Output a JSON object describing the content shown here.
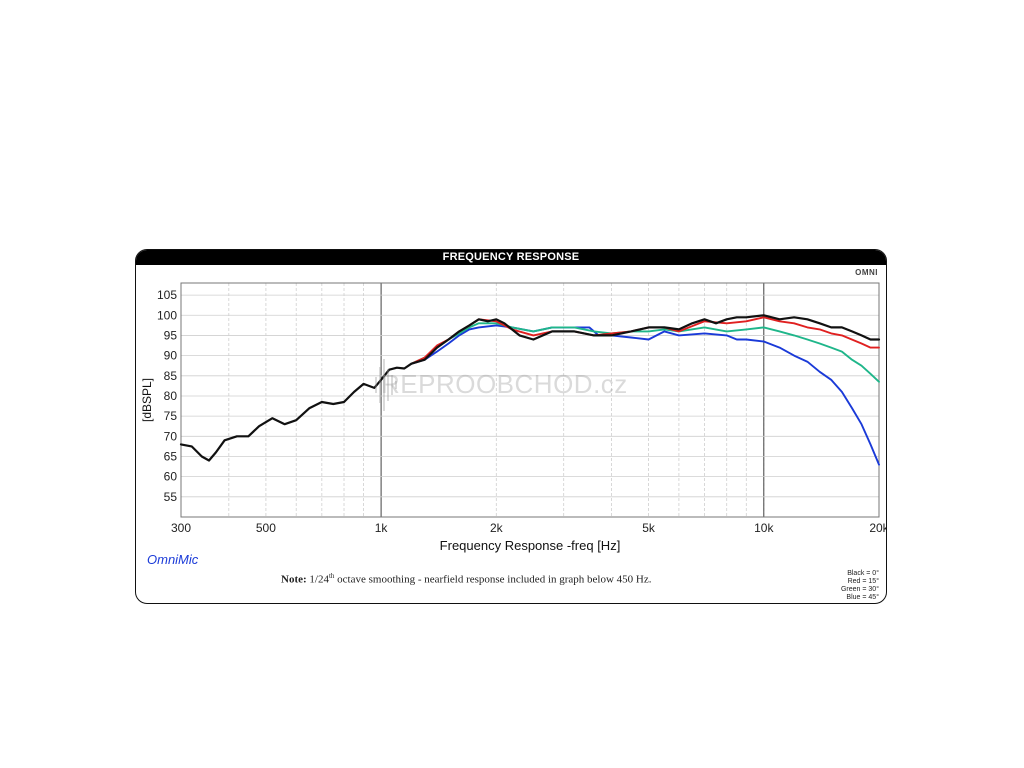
{
  "header": {
    "title": "FREQUENCY RESPONSE",
    "brand": "OMNI"
  },
  "watermark": {
    "text": "REPROOBCHOD.cz"
  },
  "footer": {
    "logo": "OmniMic",
    "note_bold": "Note:",
    "note_pre": " 1/24",
    "note_sup": "th",
    "note_post": " octave smoothing - nearfield response included in graph below 450 Hz."
  },
  "legend": [
    "Black = 0°",
    "Red = 15°",
    "Green = 30°",
    "Blue = 45°"
  ],
  "colors": {
    "black": "#111111",
    "red": "#e02020",
    "green": "#1fb68a",
    "blue": "#1a3ad8",
    "grid": "#cfcfcf",
    "frame": "#777777"
  },
  "chart_data": {
    "type": "line",
    "xlabel": "Frequency Response -freq [Hz]",
    "ylabel": "[dBSPL]",
    "xscale": "log",
    "xlim": [
      300,
      20000
    ],
    "ylim": [
      50,
      108
    ],
    "yticks": [
      55,
      60,
      65,
      70,
      75,
      80,
      85,
      90,
      95,
      100,
      105
    ],
    "xticks": [
      {
        "value": 300,
        "label": "300"
      },
      {
        "value": 500,
        "label": "500"
      },
      {
        "value": 1000,
        "label": "1k"
      },
      {
        "value": 2000,
        "label": "2k"
      },
      {
        "value": 5000,
        "label": "5k"
      },
      {
        "value": 10000,
        "label": "10k"
      },
      {
        "value": 20000,
        "label": "20k"
      }
    ],
    "grid": true,
    "legend_position": "bottom-right",
    "series": [
      {
        "name": "Black = 0°",
        "color": "#111111",
        "points": [
          [
            300,
            68
          ],
          [
            320,
            67.5
          ],
          [
            340,
            65
          ],
          [
            355,
            64
          ],
          [
            370,
            66
          ],
          [
            390,
            69
          ],
          [
            420,
            70
          ],
          [
            450,
            70
          ],
          [
            480,
            72.5
          ],
          [
            520,
            74.5
          ],
          [
            560,
            73
          ],
          [
            600,
            74
          ],
          [
            650,
            77
          ],
          [
            700,
            78.5
          ],
          [
            750,
            78
          ],
          [
            800,
            78.5
          ],
          [
            850,
            81
          ],
          [
            900,
            83
          ],
          [
            960,
            82
          ],
          [
            1000,
            84
          ],
          [
            1050,
            86.5
          ],
          [
            1100,
            87
          ],
          [
            1150,
            86.8
          ],
          [
            1200,
            88
          ],
          [
            1300,
            89
          ],
          [
            1400,
            92
          ],
          [
            1500,
            94
          ],
          [
            1600,
            96
          ],
          [
            1700,
            97.5
          ],
          [
            1800,
            99
          ],
          [
            1900,
            98.5
          ],
          [
            2000,
            99
          ],
          [
            2100,
            98
          ],
          [
            2300,
            95
          ],
          [
            2500,
            94
          ],
          [
            2800,
            96
          ],
          [
            3200,
            96
          ],
          [
            3600,
            95
          ],
          [
            4000,
            95
          ],
          [
            4500,
            96
          ],
          [
            5000,
            97
          ],
          [
            5500,
            97
          ],
          [
            6000,
            96.5
          ],
          [
            6500,
            98
          ],
          [
            7000,
            99
          ],
          [
            7500,
            98
          ],
          [
            8000,
            99
          ],
          [
            8500,
            99.5
          ],
          [
            9000,
            99.5
          ],
          [
            10000,
            100
          ],
          [
            11000,
            99
          ],
          [
            12000,
            99.5
          ],
          [
            13000,
            99
          ],
          [
            14000,
            98
          ],
          [
            15000,
            97
          ],
          [
            16000,
            97
          ],
          [
            17000,
            96
          ],
          [
            18000,
            95
          ],
          [
            19000,
            94
          ],
          [
            20000,
            94
          ]
        ]
      },
      {
        "name": "Red = 15°",
        "color": "#e02020",
        "points": [
          [
            1200,
            88
          ],
          [
            1300,
            89.5
          ],
          [
            1400,
            92.5
          ],
          [
            1500,
            94
          ],
          [
            1600,
            96
          ],
          [
            1700,
            97.5
          ],
          [
            1800,
            99
          ],
          [
            2000,
            98.5
          ],
          [
            2200,
            96.5
          ],
          [
            2500,
            95
          ],
          [
            2800,
            96
          ],
          [
            3200,
            96
          ],
          [
            3600,
            95
          ],
          [
            4000,
            95.5
          ],
          [
            4500,
            96
          ],
          [
            5000,
            97
          ],
          [
            5500,
            97
          ],
          [
            6000,
            96
          ],
          [
            7000,
            98.5
          ],
          [
            8000,
            98
          ],
          [
            9000,
            98.5
          ],
          [
            10000,
            99.5
          ],
          [
            11000,
            98.5
          ],
          [
            12000,
            98
          ],
          [
            13000,
            97
          ],
          [
            14000,
            96.5
          ],
          [
            15000,
            95.5
          ],
          [
            16000,
            95
          ],
          [
            18000,
            93
          ],
          [
            19000,
            92
          ],
          [
            20000,
            92
          ]
        ]
      },
      {
        "name": "Green = 30°",
        "color": "#1fb68a",
        "points": [
          [
            1200,
            88
          ],
          [
            1300,
            89.5
          ],
          [
            1400,
            92
          ],
          [
            1500,
            94
          ],
          [
            1600,
            95.5
          ],
          [
            1700,
            97
          ],
          [
            1800,
            98
          ],
          [
            2000,
            98
          ],
          [
            2200,
            97
          ],
          [
            2500,
            96
          ],
          [
            2800,
            97
          ],
          [
            3200,
            97
          ],
          [
            3600,
            96
          ],
          [
            4000,
            95.5
          ],
          [
            4500,
            96
          ],
          [
            5000,
            96
          ],
          [
            5500,
            96.5
          ],
          [
            6000,
            96
          ],
          [
            7000,
            97
          ],
          [
            8000,
            96
          ],
          [
            9000,
            96.5
          ],
          [
            10000,
            97
          ],
          [
            11000,
            96
          ],
          [
            12000,
            95
          ],
          [
            13000,
            94
          ],
          [
            14000,
            93
          ],
          [
            15000,
            92
          ],
          [
            16000,
            91
          ],
          [
            17000,
            89
          ],
          [
            18000,
            87.5
          ],
          [
            19000,
            85.5
          ],
          [
            20000,
            83.5
          ]
        ]
      },
      {
        "name": "Blue = 45°",
        "color": "#1a3ad8",
        "points": [
          [
            1200,
            88
          ],
          [
            1300,
            89
          ],
          [
            1400,
            91
          ],
          [
            1500,
            93
          ],
          [
            1600,
            95
          ],
          [
            1700,
            96.5
          ],
          [
            1800,
            97
          ],
          [
            2000,
            97.5
          ],
          [
            2200,
            97
          ],
          [
            2500,
            96
          ],
          [
            2800,
            97
          ],
          [
            3200,
            97
          ],
          [
            3500,
            97
          ],
          [
            3700,
            95
          ],
          [
            4000,
            95
          ],
          [
            4500,
            94.5
          ],
          [
            5000,
            94
          ],
          [
            5500,
            96
          ],
          [
            6000,
            95
          ],
          [
            7000,
            95.5
          ],
          [
            8000,
            95
          ],
          [
            8500,
            94
          ],
          [
            9000,
            94
          ],
          [
            10000,
            93.5
          ],
          [
            11000,
            92
          ],
          [
            12000,
            90
          ],
          [
            13000,
            88.5
          ],
          [
            14000,
            86
          ],
          [
            15000,
            84
          ],
          [
            16000,
            81
          ],
          [
            17000,
            77
          ],
          [
            18000,
            73
          ],
          [
            19000,
            68
          ],
          [
            20000,
            63
          ]
        ]
      }
    ]
  }
}
